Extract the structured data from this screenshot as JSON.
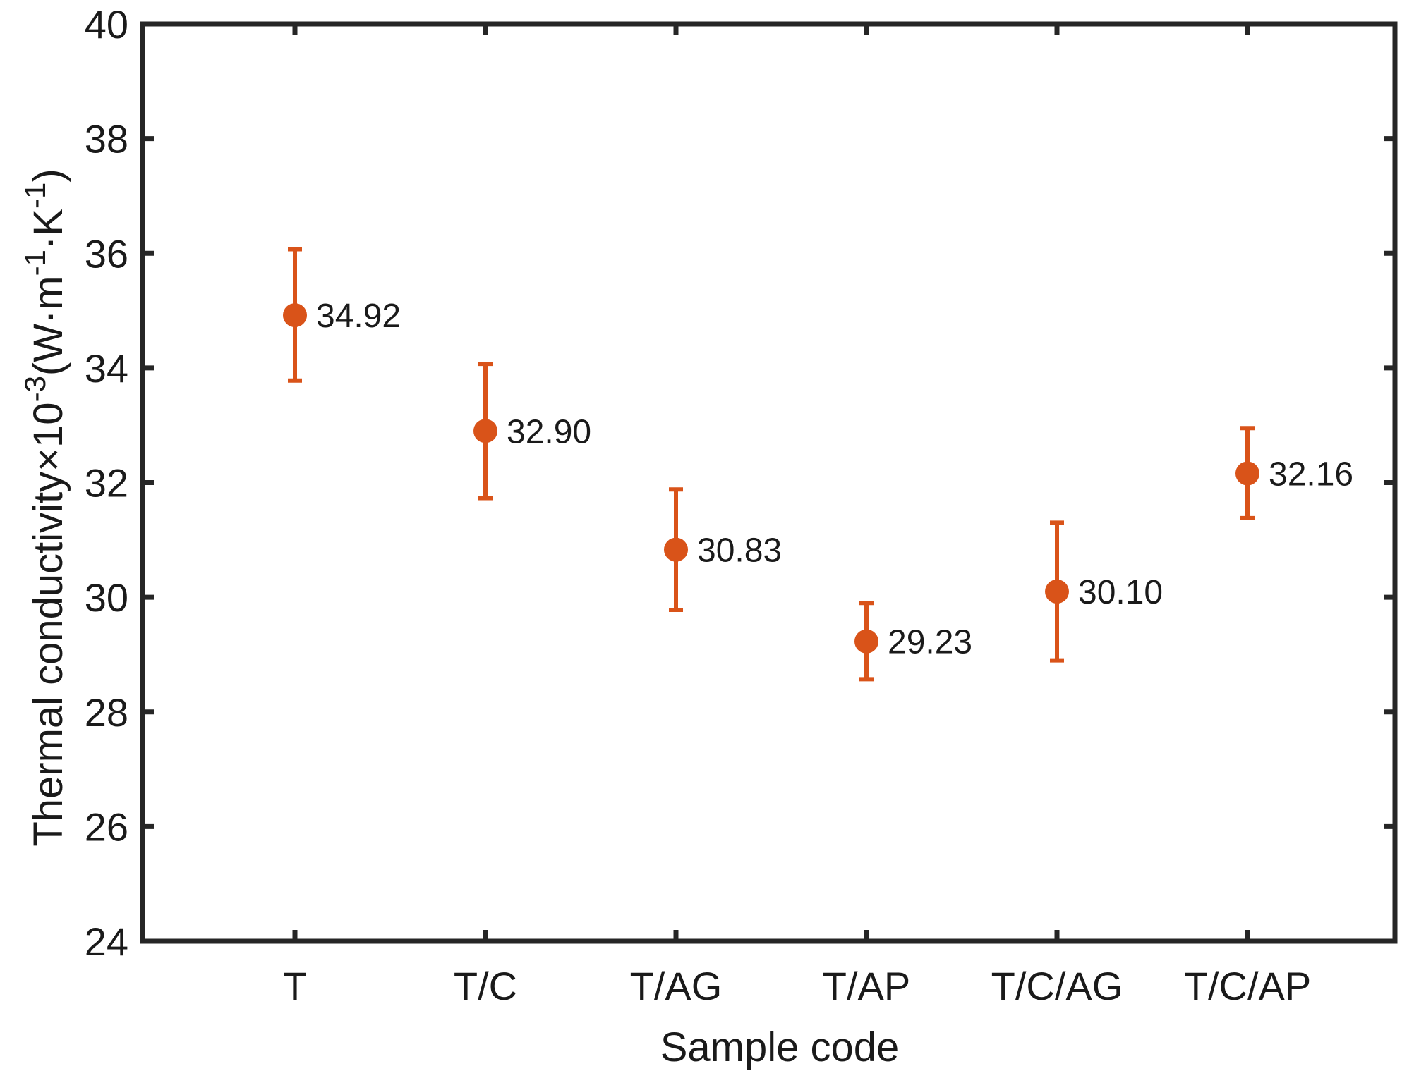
{
  "chart_data": {
    "type": "scatter",
    "title": "",
    "xlabel": "Sample code",
    "ylabel": {
      "main": "Thermal conductivity×10",
      "exp": "-3",
      "unit_open": "(W·m",
      "unit_exp1": "-1",
      "unit_mid": "·K",
      "unit_exp2": "-1",
      "unit_close": ")"
    },
    "categories": [
      "T",
      "T/C",
      "T/AG",
      "T/AP",
      "T/C/AG",
      "T/C/AP"
    ],
    "series": [
      {
        "name": "Thermal conductivity",
        "values": [
          34.92,
          32.9,
          30.83,
          29.23,
          30.1,
          32.16
        ],
        "error_low": [
          33.78,
          31.73,
          29.78,
          28.57,
          28.9,
          31.38
        ],
        "error_high": [
          36.07,
          34.07,
          31.88,
          29.9,
          31.3,
          32.95
        ],
        "labels": [
          "34.92",
          "32.90",
          "30.83",
          "29.23",
          "30.10",
          "32.16"
        ],
        "color": "#d95319"
      }
    ],
    "ylim": [
      24,
      40
    ],
    "yticks": [
      24,
      26,
      28,
      30,
      32,
      34,
      36,
      38,
      40
    ],
    "grid": false,
    "legend": "none"
  }
}
